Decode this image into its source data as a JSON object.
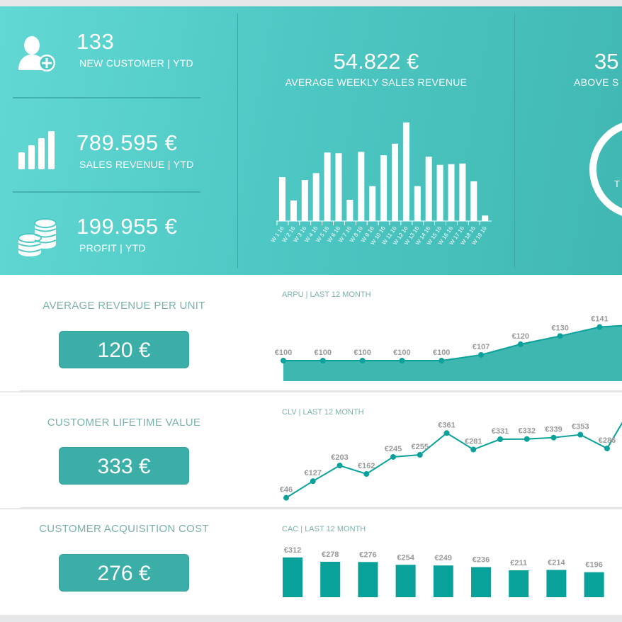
{
  "kpis": {
    "new_customer": {
      "value": "133",
      "label": "NEW CUSTOMER | YTD"
    },
    "sales_revenue": {
      "value": "789.595 €",
      "label": "SALES REVENUE | YTD"
    },
    "profit": {
      "value": "199.955 €",
      "label": "PROFIT | YTD"
    }
  },
  "weekly": {
    "value": "54.822 €",
    "label": "AVERAGE WEEKLY SALES REVENUE"
  },
  "right_kpi": {
    "value_partial": "35",
    "label_partial": "ABOVE S",
    "ring_text_partial": "T"
  },
  "metrics": {
    "arpu": {
      "title": "AVERAGE REVENUE PER UNIT",
      "value": "120 €",
      "chart_title": "ARPU | LAST 12 MONTH"
    },
    "clv": {
      "title": "CUSTOMER LIFETIME VALUE",
      "value": "333 €",
      "chart_title": "CLV | LAST 12 MONTH"
    },
    "cac": {
      "title": "CUSTOMER ACQUISITION COST",
      "value": "276 €",
      "chart_title": "CAC | LAST 12 MONTH"
    }
  },
  "colors": {
    "teal": "#3aaea7",
    "chart_teal": "#0aa19b",
    "white": "#ffffff"
  },
  "icons": [
    "add-user-icon",
    "bar-chart-icon",
    "coins-icon"
  ],
  "chart_data": [
    {
      "type": "bar",
      "categories": [
        "W 1 16",
        "W 2 16",
        "W 3 16",
        "W 4 16",
        "W 5 16",
        "W 6 16",
        "W 7 16",
        "W 8 16",
        "W 9 16",
        "W 10 16",
        "W 11 16",
        "W 12 16",
        "W 13 16",
        "W 14 16",
        "W 15 16",
        "W 16 16",
        "W 17 16",
        "W 18 16",
        "W 19 16"
      ],
      "values": [
        64,
        30,
        60,
        70,
        100,
        99,
        31,
        101,
        51,
        96,
        113,
        144,
        51,
        94,
        82,
        83,
        84,
        58,
        8
      ],
      "ylim": [
        0,
        150
      ],
      "grid": false
    },
    {
      "type": "area",
      "title": "ARPU | LAST 12 MONTH",
      "labels": [
        "€100",
        "€100",
        "€100",
        "€100",
        "€100",
        "€107",
        "€120",
        "€130",
        "€141"
      ],
      "values": [
        100,
        100,
        100,
        100,
        100,
        107,
        120,
        130,
        141
      ],
      "ylim": [
        0,
        170
      ]
    },
    {
      "type": "line",
      "title": "CLV | LAST 12 MONTH",
      "labels": [
        "€46",
        "€127",
        "€203",
        "€162",
        "€245",
        "€255",
        "€361",
        "€281",
        "€331",
        "€332",
        "€339",
        "€353",
        "€286"
      ],
      "values": [
        46,
        127,
        203,
        162,
        245,
        255,
        361,
        281,
        331,
        332,
        339,
        353,
        286
      ],
      "ylim": [
        0,
        420
      ]
    },
    {
      "type": "bar",
      "title": "CAC | LAST 12 MONTH",
      "labels": [
        "€312",
        "€278",
        "€276",
        "€254",
        "€249",
        "€236",
        "€211",
        "€214",
        "€196"
      ],
      "values": [
        312,
        278,
        276,
        254,
        249,
        236,
        211,
        214,
        196
      ],
      "ylim": [
        0,
        340
      ]
    }
  ]
}
